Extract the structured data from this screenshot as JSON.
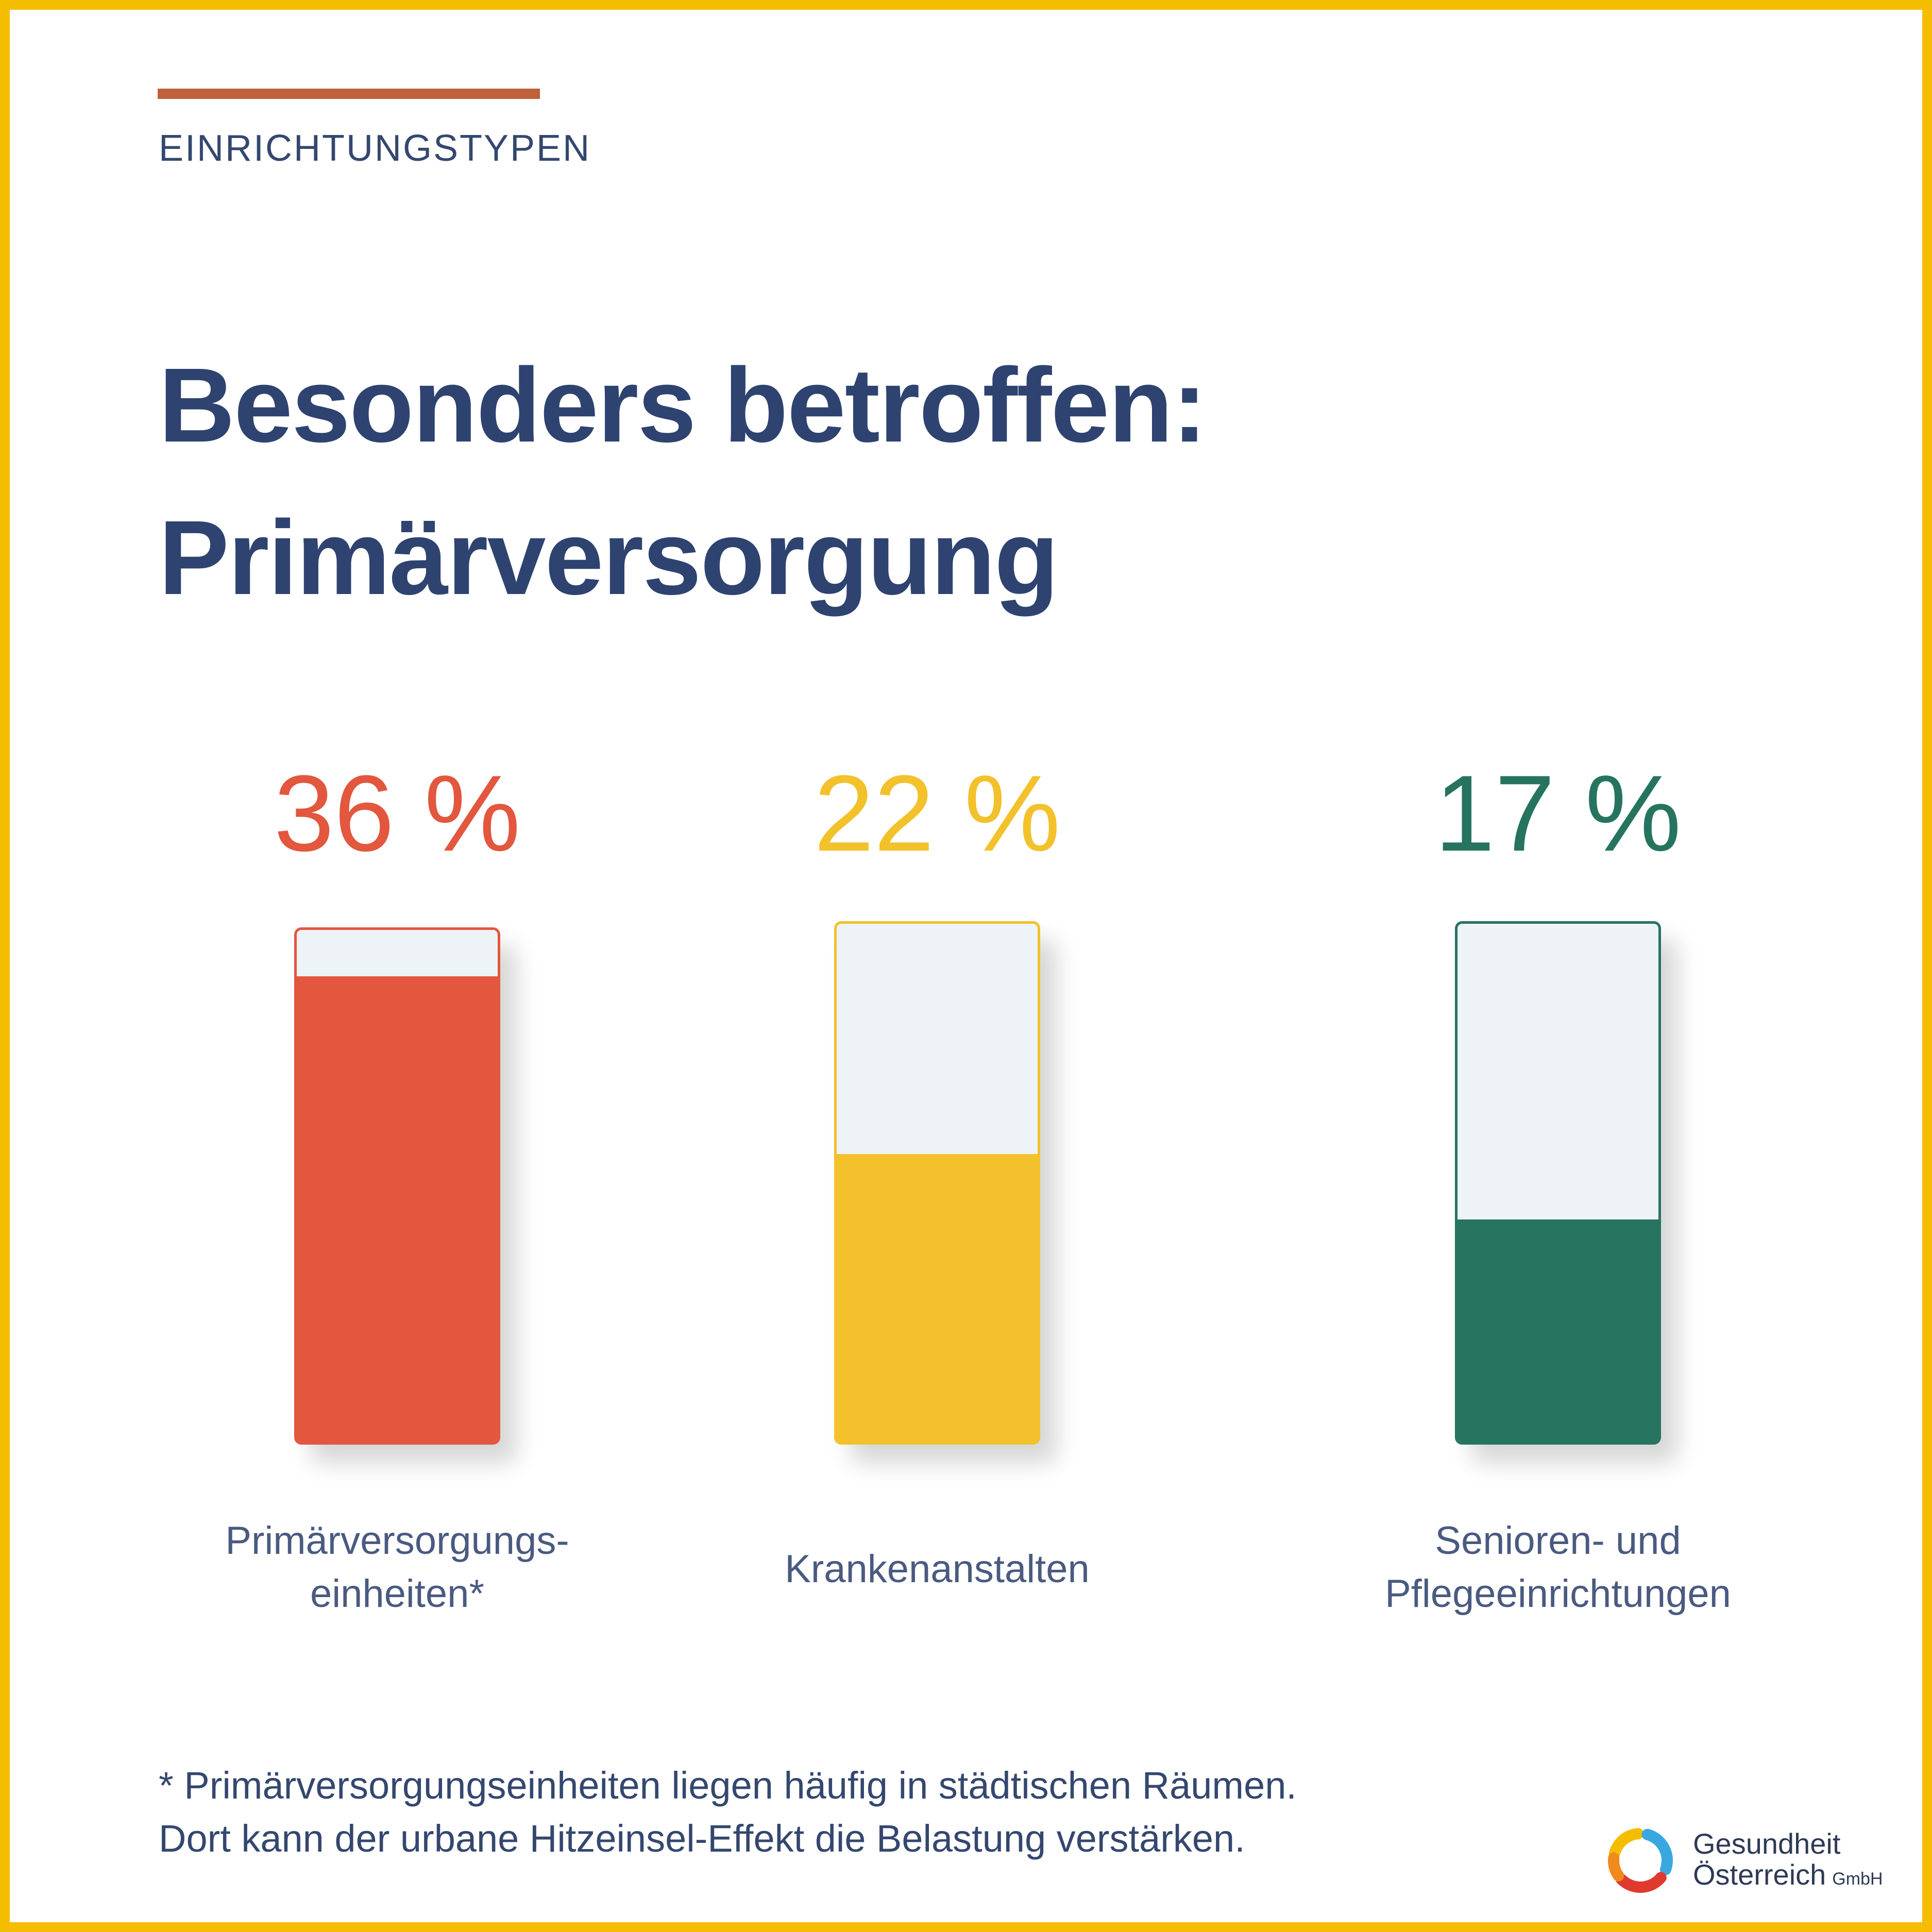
{
  "eyebrow": "EINRICHTUNGSTYPEN",
  "title": {
    "line1": "Besonders betroffen:",
    "line2": "Primärversorgung"
  },
  "chart_data": {
    "type": "bar",
    "title": "Besonders betroffen: Primärversorgung",
    "categories": [
      [
        "Primärversorgungs-",
        "einheiten*"
      ],
      [
        "Krankenanstalten"
      ],
      [
        "Senioren- und",
        "Pflegeeinrichtungen"
      ]
    ],
    "values": [
      36,
      22,
      17
    ],
    "value_labels": [
      "36 %",
      "22 %",
      "17 %"
    ],
    "unit": "%",
    "ylim": [
      0,
      40
    ],
    "colors": [
      "#E2573E",
      "#F2C12B",
      "#267460"
    ],
    "grid": false
  },
  "footnote": {
    "line1": "* Primärversorgungseinheiten liegen häufig in städtischen Räumen.",
    "line2": "Dort kann der urbane Hitzeinsel-Effekt die Belastung verstärken."
  },
  "logo": {
    "line1": "Gesundheit",
    "line2": "Österreich",
    "suffix": "GmbH",
    "icon": "ring-logo-icon",
    "colors": [
      "#F5BD00",
      "#3AA8E0",
      "#E03A2F",
      "#F08A1C"
    ]
  }
}
